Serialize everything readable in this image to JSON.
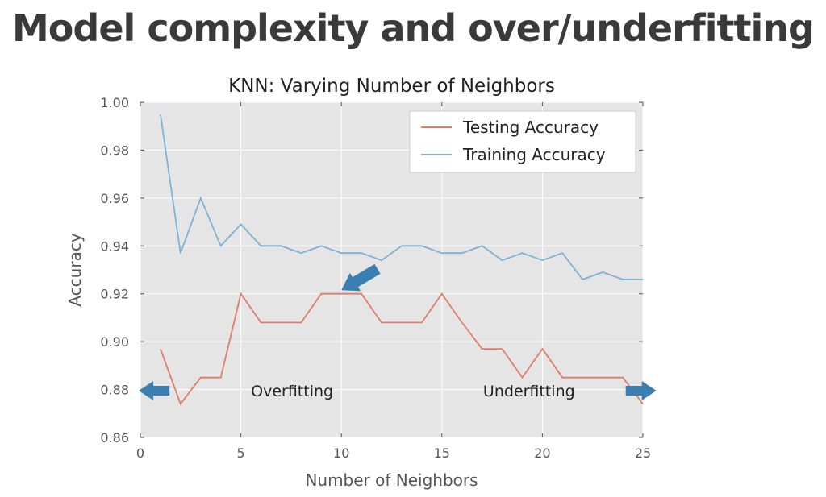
{
  "slide": {
    "title": "Model complexity and over/underfitting"
  },
  "chart_data": {
    "type": "line",
    "title": "KNN: Varying Number of Neighbors",
    "xlabel": "Number of Neighbors",
    "ylabel": "Accuracy",
    "xlim": [
      0,
      25
    ],
    "ylim": [
      0.86,
      1.0
    ],
    "xticks": [
      0,
      5,
      10,
      15,
      20,
      25
    ],
    "yticks": [
      "0.86",
      "0.88",
      "0.90",
      "0.92",
      "0.94",
      "0.96",
      "0.98",
      "1.00"
    ],
    "grid": true,
    "legend_position": "top-right",
    "x": [
      1,
      2,
      3,
      4,
      5,
      6,
      7,
      8,
      9,
      10,
      11,
      12,
      13,
      14,
      15,
      16,
      17,
      18,
      19,
      20,
      21,
      22,
      23,
      24,
      25
    ],
    "series": [
      {
        "name": "Testing Accuracy",
        "color": "#e17c6a",
        "values": [
          0.897,
          0.874,
          0.885,
          0.885,
          0.92,
          0.908,
          0.908,
          0.908,
          0.92,
          0.92,
          0.92,
          0.908,
          0.908,
          0.908,
          0.92,
          0.908,
          0.897,
          0.897,
          0.885,
          0.897,
          0.885,
          0.885,
          0.885,
          0.885,
          0.874
        ]
      },
      {
        "name": "Training Accuracy",
        "color": "#7fb1d4",
        "values": [
          0.995,
          0.937,
          0.96,
          0.94,
          0.949,
          0.94,
          0.94,
          0.937,
          0.94,
          0.937,
          0.937,
          0.934,
          0.94,
          0.94,
          0.937,
          0.937,
          0.94,
          0.934,
          0.937,
          0.934,
          0.937,
          0.926,
          0.929,
          0.926,
          0.926
        ]
      }
    ],
    "annotations": [
      {
        "id": "overfitting",
        "text": "Overfitting",
        "arrow_direction": "left",
        "x": 4.5,
        "y": 0.8795
      },
      {
        "id": "underfitting",
        "text": "Underfitting",
        "arrow_direction": "right",
        "x": 22.5,
        "y": 0.8795
      },
      {
        "id": "sweet-spot",
        "arrow_direction": "down-left",
        "x": 10.0,
        "y": 0.9215
      }
    ],
    "arrow_color": "#3a7fb0"
  }
}
